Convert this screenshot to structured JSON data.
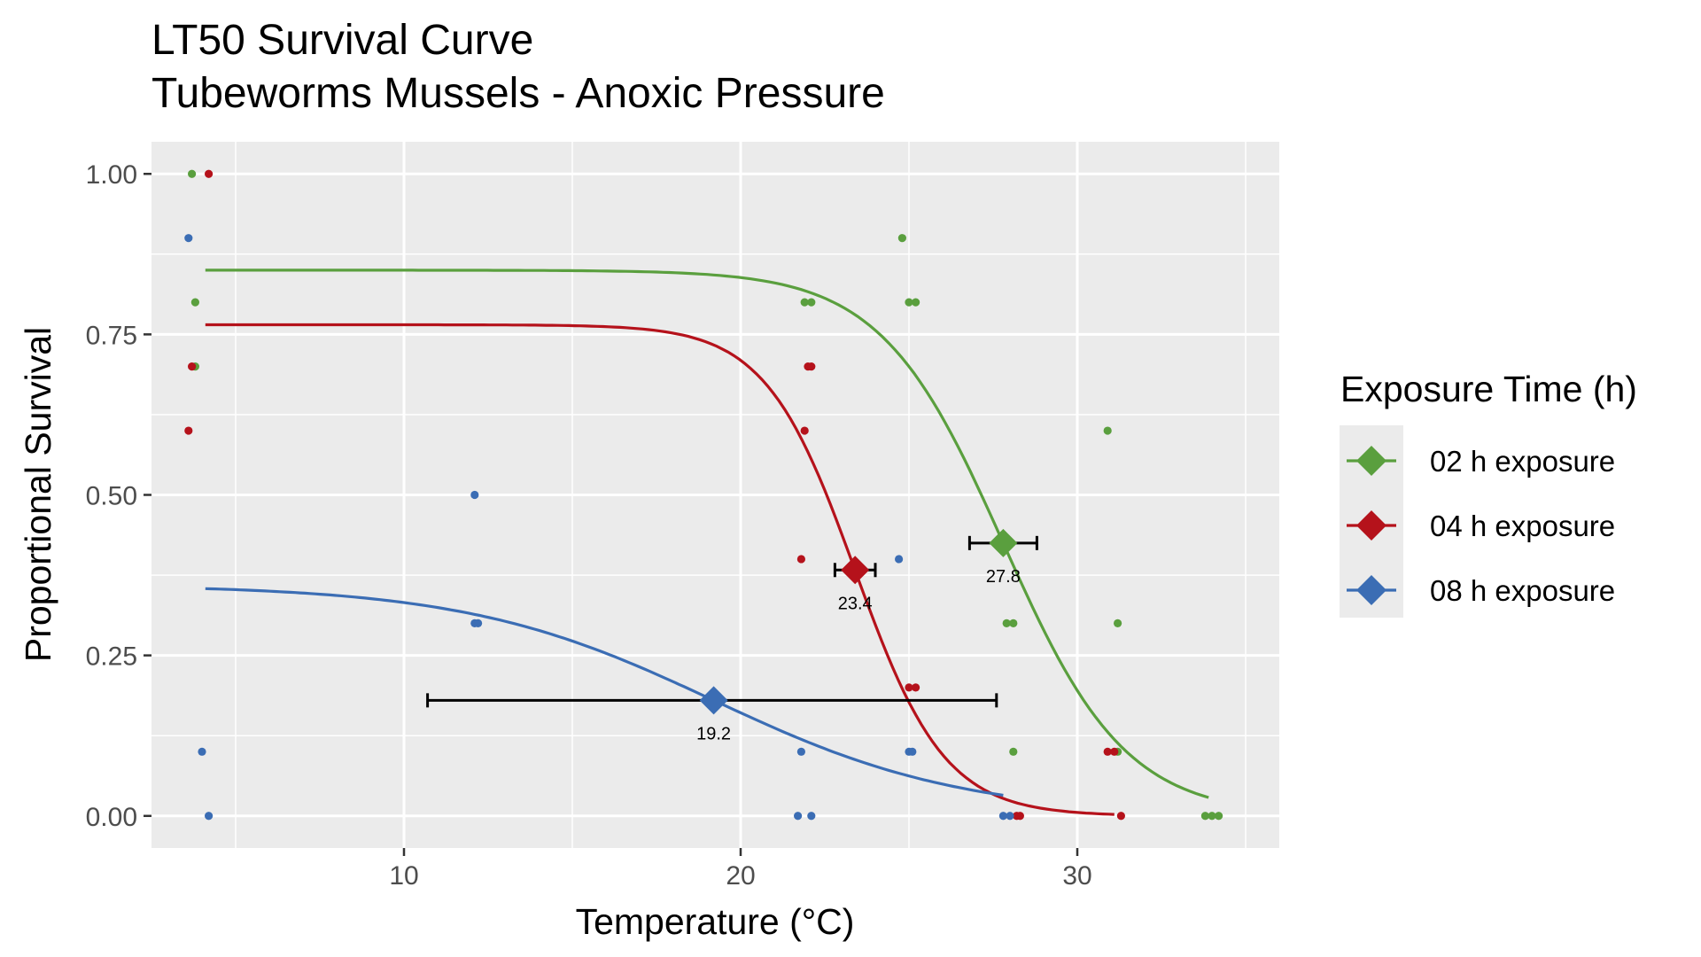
{
  "chart_data": {
    "type": "scatter",
    "title": "LT50 Survival Curve",
    "subtitle": "Tubeworms Mussels - Anoxic Pressure",
    "xlabel": "Temperature (°C)",
    "ylabel": "Proportional Survival",
    "xlim": [
      2.5,
      36
    ],
    "ylim": [
      -0.05,
      1.05
    ],
    "x_ticks": [
      10,
      20,
      30
    ],
    "y_ticks": [
      0.0,
      0.25,
      0.5,
      0.75,
      1.0
    ],
    "x_tick_labels": [
      "10",
      "20",
      "30"
    ],
    "y_tick_labels": [
      "0.00",
      "0.25",
      "0.50",
      "0.75",
      "1.00"
    ],
    "grid": true,
    "legend": {
      "title": "Exposure Time (h)",
      "position": "right"
    },
    "series": [
      {
        "name": "02 h exposure",
        "color": "#5a9f3e",
        "curve": {
          "top": 0.85,
          "lt50": 27.8,
          "slope": 0.55,
          "x_range": [
            4.1,
            33.9
          ]
        },
        "lt50": {
          "x": 27.8,
          "y": 0.425,
          "ci": [
            26.8,
            28.8
          ],
          "label": "27.8"
        },
        "points": [
          {
            "x": 3.7,
            "y": 1.0
          },
          {
            "x": 3.8,
            "y": 0.8
          },
          {
            "x": 3.8,
            "y": 0.7
          },
          {
            "x": 21.9,
            "y": 0.8
          },
          {
            "x": 22.1,
            "y": 0.8
          },
          {
            "x": 24.8,
            "y": 0.9
          },
          {
            "x": 25.0,
            "y": 0.8
          },
          {
            "x": 25.2,
            "y": 0.8
          },
          {
            "x": 27.9,
            "y": 0.3
          },
          {
            "x": 28.1,
            "y": 0.3
          },
          {
            "x": 28.1,
            "y": 0.1
          },
          {
            "x": 30.9,
            "y": 0.6
          },
          {
            "x": 31.2,
            "y": 0.3
          },
          {
            "x": 31.2,
            "y": 0.1
          },
          {
            "x": 33.8,
            "y": 0.0
          },
          {
            "x": 34.0,
            "y": 0.0
          },
          {
            "x": 34.2,
            "y": 0.0
          }
        ]
      },
      {
        "name": "04 h exposure",
        "color": "#b5121b",
        "curve": {
          "top": 0.765,
          "lt50": 23.4,
          "slope": 0.75,
          "x_range": [
            4.1,
            31.1
          ]
        },
        "lt50": {
          "x": 23.4,
          "y": 0.383,
          "ci": [
            22.8,
            24.0
          ],
          "label": "23.4"
        },
        "points": [
          {
            "x": 4.2,
            "y": 1.0
          },
          {
            "x": 3.7,
            "y": 0.7
          },
          {
            "x": 3.6,
            "y": 0.6
          },
          {
            "x": 22.0,
            "y": 0.7
          },
          {
            "x": 22.1,
            "y": 0.7
          },
          {
            "x": 21.9,
            "y": 0.6
          },
          {
            "x": 21.8,
            "y": 0.4
          },
          {
            "x": 25.0,
            "y": 0.2
          },
          {
            "x": 25.2,
            "y": 0.2
          },
          {
            "x": 28.2,
            "y": 0.0
          },
          {
            "x": 28.3,
            "y": 0.0
          },
          {
            "x": 30.9,
            "y": 0.1
          },
          {
            "x": 31.1,
            "y": 0.1
          },
          {
            "x": 31.3,
            "y": 0.0
          }
        ]
      },
      {
        "name": "08 h exposure",
        "color": "#3b6db4",
        "curve": {
          "top": 0.36,
          "lt50": 19.2,
          "slope": 0.27,
          "x_range": [
            4.1,
            27.8
          ]
        },
        "lt50": {
          "x": 19.2,
          "y": 0.18,
          "ci": [
            10.7,
            27.6
          ],
          "label": "19.2"
        },
        "points": [
          {
            "x": 3.6,
            "y": 0.9
          },
          {
            "x": 4.0,
            "y": 0.1
          },
          {
            "x": 4.2,
            "y": 0.0
          },
          {
            "x": 12.1,
            "y": 0.5
          },
          {
            "x": 12.1,
            "y": 0.3
          },
          {
            "x": 12.2,
            "y": 0.3
          },
          {
            "x": 21.8,
            "y": 0.1
          },
          {
            "x": 21.7,
            "y": 0.0
          },
          {
            "x": 22.1,
            "y": 0.0
          },
          {
            "x": 24.7,
            "y": 0.4
          },
          {
            "x": 25.0,
            "y": 0.1
          },
          {
            "x": 25.1,
            "y": 0.1
          },
          {
            "x": 27.8,
            "y": 0.0
          },
          {
            "x": 28.0,
            "y": 0.0
          }
        ]
      }
    ]
  }
}
